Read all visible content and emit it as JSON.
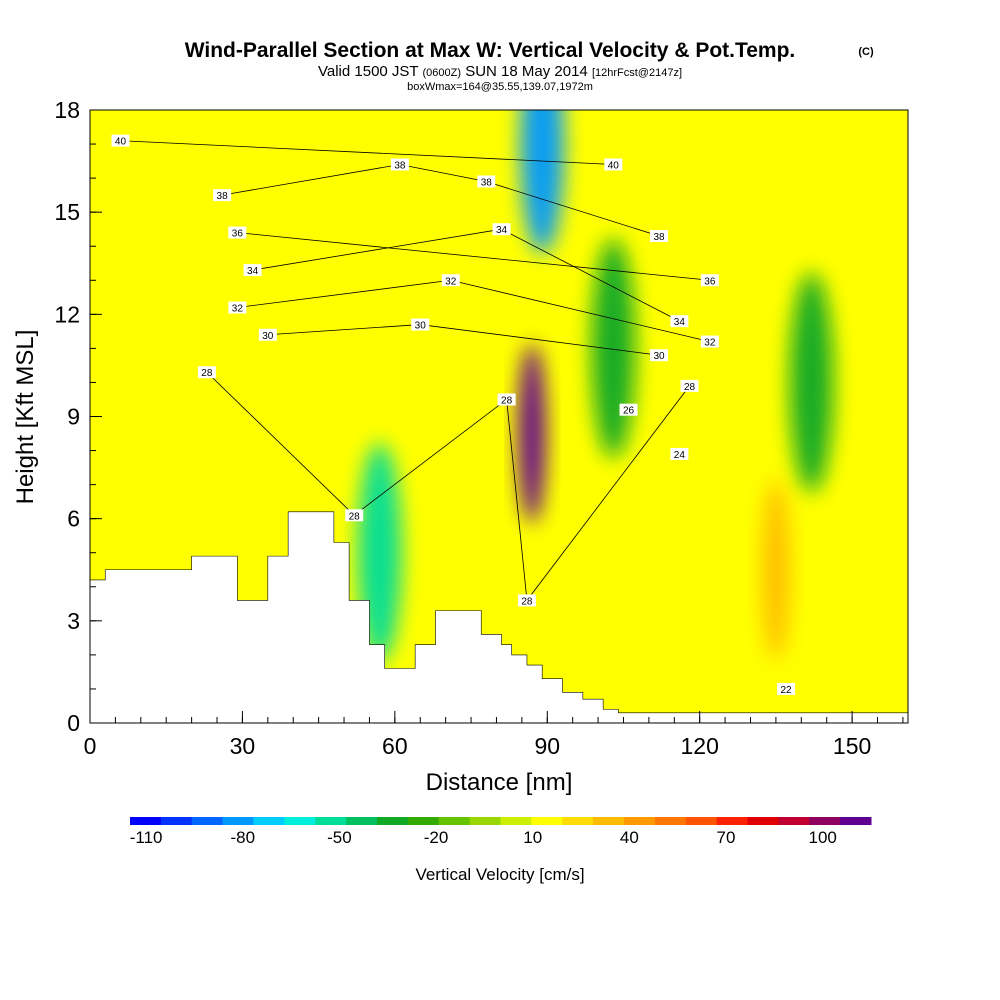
{
  "chart_data": {
    "type": "heatmap",
    "title": "Wind-Parallel Section at Max W: Vertical Velocity & Pot.Temp.",
    "title_mark": "(C)",
    "subtitle": {
      "valid": "Valid 1500 JST",
      "utc": "(0600Z)",
      "date": "SUN 18 May 2014",
      "fcst": "[12hrFcst@2147z]"
    },
    "info_line": "boxWmax=164@35.55,139.07,1972m",
    "xlabel": "Distance [nm]",
    "ylabel": "Height [Kft MSL]",
    "xlim": [
      0,
      161
    ],
    "ylim": [
      0,
      18
    ],
    "x_ticks": [
      "0",
      "30",
      "60",
      "90",
      "120",
      "150"
    ],
    "y_ticks": [
      "0",
      "3",
      "6",
      "9",
      "12",
      "15",
      "18"
    ],
    "colorbar": {
      "label": "Vertical Velocity [cm/s]",
      "tick_labels": [
        "-110",
        "-80",
        "-50",
        "-20",
        "10",
        "40",
        "70",
        "100"
      ],
      "min": -115,
      "max": 115,
      "step": 10,
      "colors": [
        "#0000ff",
        "#0033ff",
        "#0066ff",
        "#0099ff",
        "#00ccff",
        "#00eedd",
        "#00dd99",
        "#00c060",
        "#11a826",
        "#33aa00",
        "#66c300",
        "#99d600",
        "#ccee00",
        "#ffff00",
        "#ffdd00",
        "#ffbb00",
        "#ff9900",
        "#ff7700",
        "#ff5500",
        "#ff2200",
        "#e00000",
        "#c00030",
        "#900060",
        "#600090"
      ]
    },
    "features": [
      {
        "kind": "updraft",
        "x": 87,
        "y": 8.5,
        "w_cms": 164
      },
      {
        "kind": "downdraft",
        "x": 89,
        "y": 17,
        "w_cms": -80
      },
      {
        "kind": "downdraft",
        "x": 57,
        "y": 5,
        "w_cms": -50
      },
      {
        "kind": "downdraft",
        "x": 103,
        "y": 11,
        "w_cms": -30
      },
      {
        "kind": "downdraft",
        "x": 142,
        "y": 10,
        "w_cms": -30
      },
      {
        "kind": "updraft",
        "x": 135,
        "y": 4.5,
        "w_cms": 40
      }
    ],
    "isentropes_K": [
      {
        "label": "40",
        "positions": [
          [
            6,
            17.1
          ],
          [
            103,
            16.4
          ]
        ]
      },
      {
        "label": "38",
        "positions": [
          [
            26,
            15.5
          ],
          [
            61,
            16.4
          ],
          [
            78,
            15.9
          ],
          [
            112,
            14.3
          ]
        ]
      },
      {
        "label": "36",
        "positions": [
          [
            29,
            14.4
          ],
          [
            122,
            13.0
          ]
        ]
      },
      {
        "label": "34",
        "positions": [
          [
            32,
            13.3
          ],
          [
            81,
            14.5
          ],
          [
            116,
            11.8
          ]
        ]
      },
      {
        "label": "32",
        "positions": [
          [
            29,
            12.2
          ],
          [
            71,
            13.0
          ],
          [
            122,
            11.2
          ]
        ]
      },
      {
        "label": "30",
        "positions": [
          [
            35,
            11.4
          ],
          [
            65,
            11.7
          ],
          [
            112,
            10.8
          ]
        ]
      },
      {
        "label": "28",
        "positions": [
          [
            23,
            10.3
          ],
          [
            82,
            9.5
          ],
          [
            52,
            6.1
          ],
          [
            86,
            3.6
          ],
          [
            118,
            9.9
          ]
        ]
      },
      {
        "label": "26",
        "positions": [
          [
            106,
            9.2
          ]
        ]
      },
      {
        "label": "24",
        "positions": [
          [
            116,
            7.9
          ]
        ]
      },
      {
        "label": "22",
        "positions": [
          [
            137,
            1.0
          ]
        ]
      }
    ],
    "terrain_nm_kft": [
      [
        0,
        4.2
      ],
      [
        3,
        4.5
      ],
      [
        20,
        4.9
      ],
      [
        29,
        3.6
      ],
      [
        35,
        4.9
      ],
      [
        39,
        6.2
      ],
      [
        48,
        5.3
      ],
      [
        51,
        3.6
      ],
      [
        55,
        2.3
      ],
      [
        58,
        1.6
      ],
      [
        64,
        2.3
      ],
      [
        68,
        3.3
      ],
      [
        77,
        2.6
      ],
      [
        81,
        2.3
      ],
      [
        83,
        2.0
      ],
      [
        86,
        1.7
      ],
      [
        89,
        1.3
      ],
      [
        93,
        0.9
      ],
      [
        97,
        0.7
      ],
      [
        101,
        0.4
      ],
      [
        104,
        0.3
      ],
      [
        161,
        0.3
      ]
    ]
  }
}
